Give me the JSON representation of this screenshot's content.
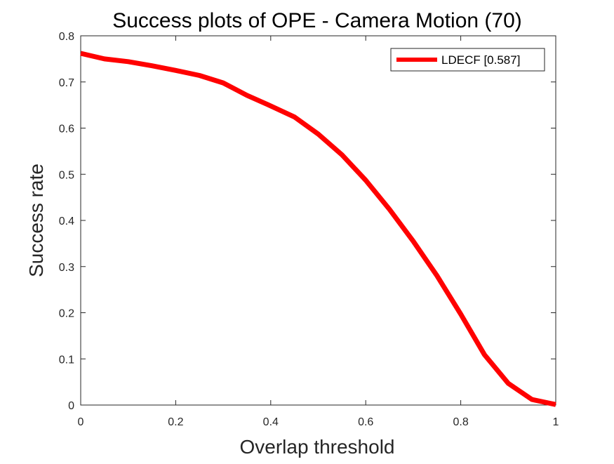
{
  "chart_data": {
    "type": "line",
    "title": "Success plots of OPE - Camera Motion (70)",
    "xlabel": "Overlap threshold",
    "ylabel": "Success rate",
    "xlim": [
      0,
      1
    ],
    "ylim": [
      0,
      0.8
    ],
    "xticks": [
      0,
      0.2,
      0.4,
      0.6,
      0.8,
      1
    ],
    "xtick_labels": [
      "0",
      "0.2",
      "0.4",
      "0.6",
      "0.8",
      "1"
    ],
    "yticks": [
      0,
      0.1,
      0.2,
      0.3,
      0.4,
      0.5,
      0.6,
      0.7,
      0.8
    ],
    "ytick_labels": [
      "0",
      "0.1",
      "0.2",
      "0.3",
      "0.4",
      "0.5",
      "0.6",
      "0.7",
      "0.8"
    ],
    "grid": false,
    "legend_position": "top-right",
    "x": [
      0,
      0.05,
      0.1,
      0.15,
      0.2,
      0.25,
      0.3,
      0.35,
      0.4,
      0.45,
      0.5,
      0.55,
      0.6,
      0.65,
      0.7,
      0.75,
      0.8,
      0.85,
      0.9,
      0.95,
      1.0
    ],
    "series": [
      {
        "name": "LDECF [0.587]",
        "color": "#ff0000",
        "values": [
          0.762,
          0.75,
          0.744,
          0.735,
          0.725,
          0.714,
          0.698,
          0.671,
          0.648,
          0.624,
          0.587,
          0.542,
          0.487,
          0.424,
          0.355,
          0.28,
          0.197,
          0.109,
          0.047,
          0.012,
          0.001
        ]
      }
    ]
  }
}
